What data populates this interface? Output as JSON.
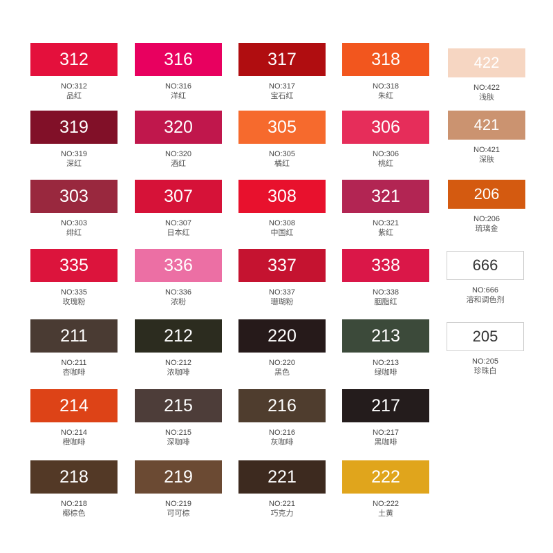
{
  "swatches": [
    {
      "num": "312",
      "code": "NO:312",
      "name": "品红",
      "color": "#E4103C"
    },
    {
      "num": "316",
      "code": "NO:316",
      "name": "洋红",
      "color": "#E8005F"
    },
    {
      "num": "317",
      "code": "NO:317",
      "name": "宝石红",
      "color": "#B00D10"
    },
    {
      "num": "318",
      "code": "NO:318",
      "name": "朱红",
      "color": "#F2561E"
    },
    {
      "num": "422",
      "code": "NO:422",
      "name": "浅肤",
      "color": "#F6D6C2"
    },
    {
      "num": "319",
      "code": "NO:319",
      "name": "深红",
      "color": "#811028"
    },
    {
      "num": "320",
      "code": "NO:320",
      "name": "酒红",
      "color": "#C0174C"
    },
    {
      "num": "305",
      "code": "NO:305",
      "name": "橘红",
      "color": "#F66A2D"
    },
    {
      "num": "306",
      "code": "NO:306",
      "name": "桃红",
      "color": "#E62D5A"
    },
    {
      "num": "421",
      "code": "NO:421",
      "name": "深肤",
      "color": "#CB9370"
    },
    {
      "num": "303",
      "code": "NO:303",
      "name": "绯红",
      "color": "#99283E"
    },
    {
      "num": "307",
      "code": "NO:307",
      "name": "日本红",
      "color": "#D61238"
    },
    {
      "num": "308",
      "code": "NO:308",
      "name": "中国红",
      "color": "#E8112D"
    },
    {
      "num": "321",
      "code": "NO:321",
      "name": "紫红",
      "color": "#B22553"
    },
    {
      "num": "206",
      "code": "NO:206",
      "name": "琉璃金",
      "color": "#D45A10"
    },
    {
      "num": "335",
      "code": "NO:335",
      "name": "玫瑰粉",
      "color": "#DC143C"
    },
    {
      "num": "336",
      "code": "NO:336",
      "name": "浓粉",
      "color": "#EC6FA4"
    },
    {
      "num": "337",
      "code": "NO:337",
      "name": "珊瑚粉",
      "color": "#C51330"
    },
    {
      "num": "338",
      "code": "NO:338",
      "name": "胭脂红",
      "color": "#DA1748"
    },
    {
      "num": "666",
      "code": "NO:666",
      "name": "溶和调色剂",
      "color": "#FFFFFF"
    },
    {
      "num": "211",
      "code": "NO:211",
      "name": "杏咖啡",
      "color": "#4A3B33"
    },
    {
      "num": "212",
      "code": "NO:212",
      "name": "浓咖啡",
      "color": "#2C2C1F"
    },
    {
      "num": "220",
      "code": "NO:220",
      "name": "黑色",
      "color": "#261A1A"
    },
    {
      "num": "213",
      "code": "NO:213",
      "name": "绿咖啡",
      "color": "#3C4A3A"
    },
    {
      "num": "205",
      "code": "NO:205",
      "name": "珍珠白",
      "color": "#FFFFFF"
    },
    {
      "num": "214",
      "code": "NO:214",
      "name": "橙咖啡",
      "color": "#DD4317"
    },
    {
      "num": "215",
      "code": "NO:215",
      "name": "深咖啡",
      "color": "#4D3D39"
    },
    {
      "num": "216",
      "code": "NO:216",
      "name": "灰咖啡",
      "color": "#4F3D2E"
    },
    {
      "num": "217",
      "code": "NO:217",
      "name": "黑咖啡",
      "color": "#241C1C"
    },
    {
      "num": "218",
      "code": "NO:218",
      "name": "椰棕色",
      "color": "#533926"
    },
    {
      "num": "219",
      "code": "NO:219",
      "name": "可可棕",
      "color": "#6B4A33"
    },
    {
      "num": "221",
      "code": "NO:221",
      "name": "巧克力",
      "color": "#3D2A1F"
    },
    {
      "num": "222",
      "code": "NO:222",
      "name": "土黄",
      "color": "#E0A51C"
    }
  ]
}
